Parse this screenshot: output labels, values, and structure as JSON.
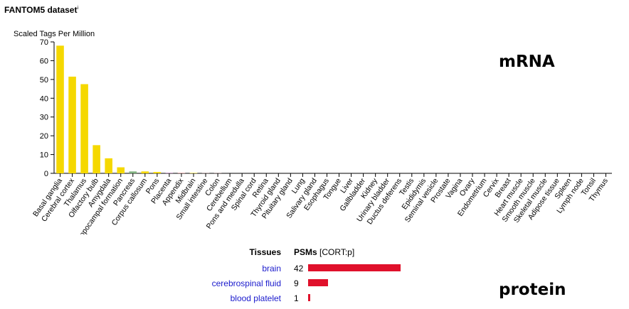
{
  "page": {
    "dataset_title": "FANTOM5 dataset",
    "dataset_info_mark": "i",
    "mrna_label": "mRNA",
    "protein_label": "protein"
  },
  "chart_data": {
    "type": "bar",
    "ylabel": "Scaled Tags Per Million",
    "ylim": [
      0,
      70
    ],
    "yticks": [
      0,
      10,
      20,
      30,
      40,
      50,
      60,
      70
    ],
    "grid": false,
    "categories": [
      "Basal ganglia",
      "Cerebral cortex",
      "Thalamus",
      "Olfactory bulb",
      "Amygdala",
      "Hippocampal formation",
      "Pancreas",
      "Corpus callosum",
      "Pons",
      "Placenta",
      "Appendix",
      "Midbrain",
      "Small intestine",
      "Colon",
      "Cerebellum",
      "Pons and medulla",
      "Spinal cord",
      "Retina",
      "Thyroid gland",
      "Pituitary gland",
      "Lung",
      "Salivary gland",
      "Esophagus",
      "Tongue",
      "Liver",
      "Gallbladder",
      "Kidney",
      "Urinary bladder",
      "Ductus deferens",
      "Testis",
      "Epididymis",
      "Seminal vesicle",
      "Prostate",
      "Vagina",
      "Ovary",
      "Endometrium",
      "Cervix",
      "Breast",
      "Heart muscle",
      "Smooth muscle",
      "Skeletal muscle",
      "Adipose tissue",
      "Spleen",
      "Lymph node",
      "Tonsil",
      "Thymus"
    ],
    "values": [
      68,
      51.5,
      47.5,
      15,
      8,
      3.2,
      1,
      1,
      0.7,
      0.4,
      0.3,
      0.2,
      0.1,
      0.1,
      0,
      0,
      0,
      0,
      0,
      0,
      0,
      0,
      0,
      0,
      0,
      0,
      0,
      0,
      0,
      0,
      0,
      0,
      0,
      0,
      0,
      0,
      0,
      0,
      0,
      0,
      0,
      0,
      0,
      0,
      0,
      0
    ],
    "colors": [
      "#f5d800",
      "#f5d800",
      "#f5d800",
      "#f5d800",
      "#f5d800",
      "#f5d800",
      "#7fb07f",
      "#f5d800",
      "#f5d800",
      "#c9a0c9",
      "#e0a0a0",
      "#f5d800",
      "#e0a0a0",
      "#e0a0a0",
      "#f5d800",
      "#f5d800",
      "#f5d800",
      "#f5d800",
      "#b0b0d8",
      "#b0b0d8",
      "#b0d8d8",
      "#e0a0a0",
      "#e0a0a0",
      "#e0a0a0",
      "#e0a0a0",
      "#e0a0a0",
      "#e0a0a0",
      "#e0a0a0",
      "#b0b0d8",
      "#b0b0d8",
      "#b0b0d8",
      "#b0b0d8",
      "#b0b0d8",
      "#c9a0c9",
      "#c9a0c9",
      "#c9a0c9",
      "#c9a0c9",
      "#c9a0c9",
      "#e0a0a0",
      "#e0a0a0",
      "#e0a0a0",
      "#e0a0a0",
      "#b0b0d8",
      "#b0b0d8",
      "#b0b0d8",
      "#b0b0d8"
    ]
  },
  "psm_table": {
    "header_tissues": "Tissues",
    "header_psms": "PSMs",
    "header_psms_sub": "[CORT:p]",
    "max": 42,
    "bar_color": "#e0112b",
    "rows": [
      {
        "tissue": "brain",
        "count": 42
      },
      {
        "tissue": "cerebrospinal fluid",
        "count": 9
      },
      {
        "tissue": "blood platelet",
        "count": 1
      }
    ]
  }
}
